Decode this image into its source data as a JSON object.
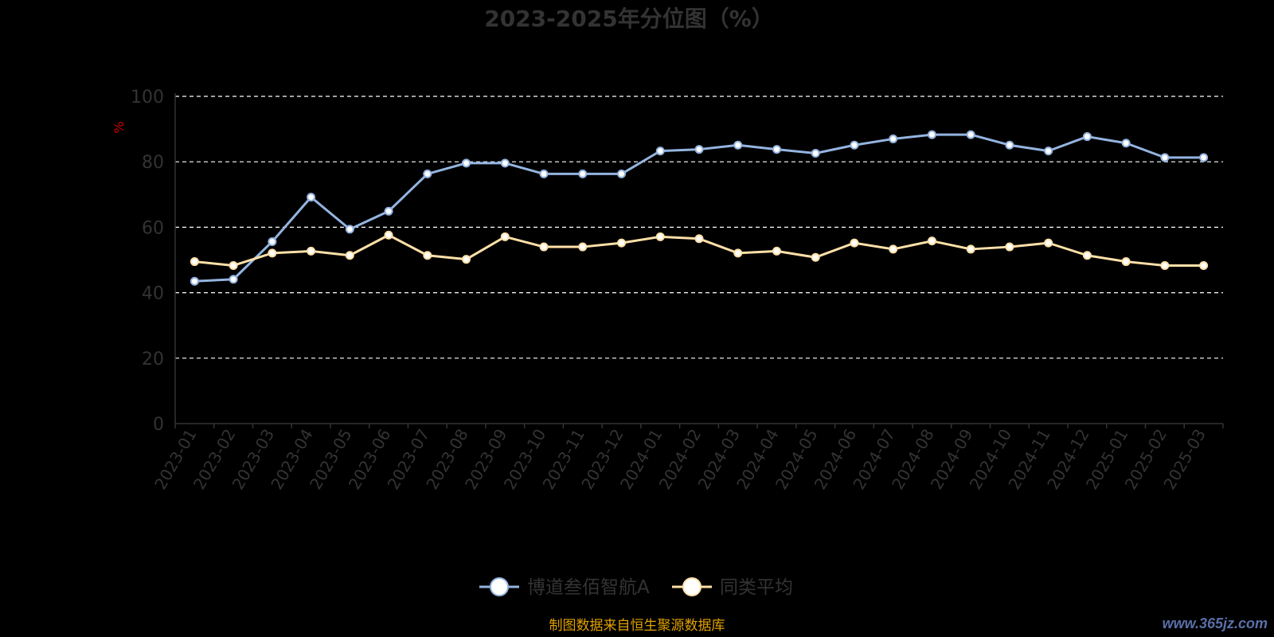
{
  "chart_data": {
    "type": "line",
    "title": "2023-2025年分位图（%）",
    "ylabel": "%",
    "ylim": [
      0,
      100
    ],
    "yticks": [
      0,
      20,
      40,
      60,
      80,
      100
    ],
    "grid": true,
    "legend_position": "bottom",
    "categories": [
      "2023-01",
      "2023-02",
      "2023-03",
      "2023-04",
      "2023-05",
      "2023-06",
      "2023-07",
      "2023-08",
      "2023-09",
      "2023-10",
      "2023-11",
      "2023-12",
      "2024-01",
      "2024-02",
      "2024-03",
      "2024-04",
      "2024-05",
      "2024-06",
      "2024-07",
      "2024-08",
      "2024-09",
      "2024-10",
      "2024-11",
      "2024-12",
      "2025-01",
      "2025-02",
      "2025-03"
    ],
    "series": [
      {
        "name": "博道叁佰智航A",
        "color": "#94b4e0",
        "values": [
          43.5,
          44.1,
          55.6,
          69.2,
          59.4,
          64.9,
          76.3,
          79.6,
          79.6,
          76.3,
          76.3,
          76.3,
          83.3,
          83.8,
          85.1,
          83.8,
          82.6,
          85.1,
          87.0,
          88.3,
          88.3,
          85.1,
          83.3,
          87.7,
          85.7,
          81.3,
          81.3
        ]
      },
      {
        "name": "同类平均",
        "color": "#ffe0a8",
        "values": [
          49.5,
          48.3,
          52.1,
          52.7,
          51.4,
          57.6,
          51.4,
          50.2,
          57.1,
          54.0,
          54.0,
          55.2,
          57.1,
          56.5,
          52.1,
          52.7,
          50.8,
          55.2,
          53.3,
          55.8,
          53.3,
          54.0,
          55.2,
          51.4,
          49.5,
          48.3,
          48.3
        ]
      }
    ]
  },
  "footer": {
    "source": "制图数据来自恒生聚源数据库",
    "watermark": "www.365jz.com"
  },
  "colors": {
    "background": "#000000",
    "title": "#333333",
    "axis_text": "#333333",
    "ylabel": "#cc0000",
    "grid": "#ffffff",
    "source": "#e0a000"
  }
}
